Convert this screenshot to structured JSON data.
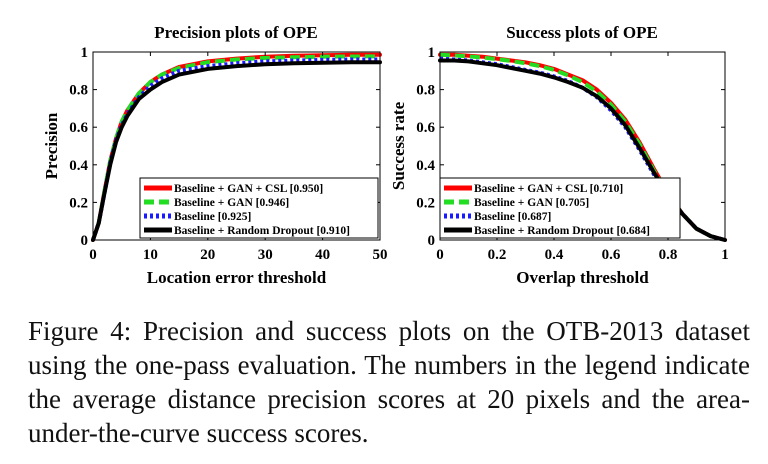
{
  "figure": {
    "caption": "Figure 4: Precision and success plots on the OTB-2013 dataset using the one-pass evaluation. The numbers in the legend indicate the average distance precision scores at 20 pixels and the area-under-the-curve success scores."
  },
  "chart_data": [
    {
      "type": "line",
      "title": "Precision plots of OPE",
      "xlabel": "Location error threshold",
      "ylabel": "Precision",
      "xlim": [
        0,
        50
      ],
      "ylim": [
        0,
        1
      ],
      "xticks": [
        0,
        10,
        20,
        30,
        40,
        50
      ],
      "yticks": [
        0,
        0.2,
        0.4,
        0.6,
        0.8,
        1
      ],
      "yticklabels": [
        "0",
        "0.2",
        "0.4",
        "0.6",
        "0.8",
        "1"
      ],
      "legend_position": "bottom-right",
      "x": [
        0,
        1,
        2,
        3,
        4,
        5,
        6,
        8,
        10,
        12,
        15,
        20,
        25,
        30,
        35,
        40,
        45,
        50
      ],
      "series": [
        {
          "name": "Baseline + GAN + CSL [0.950]",
          "color": "#ff0000",
          "dash": "solid",
          "values": [
            0.0,
            0.09,
            0.26,
            0.42,
            0.54,
            0.63,
            0.69,
            0.78,
            0.84,
            0.88,
            0.92,
            0.95,
            0.965,
            0.975,
            0.98,
            0.983,
            0.985,
            0.985
          ]
        },
        {
          "name": "Baseline + GAN [0.946]",
          "color": "#22dd22",
          "dash": "dashed",
          "values": [
            0.0,
            0.09,
            0.26,
            0.42,
            0.54,
            0.63,
            0.69,
            0.78,
            0.84,
            0.88,
            0.915,
            0.946,
            0.96,
            0.968,
            0.972,
            0.975,
            0.976,
            0.977
          ]
        },
        {
          "name": "Baseline [0.925]",
          "color": "#1a1aff",
          "dash": "dotted",
          "values": [
            0.0,
            0.09,
            0.25,
            0.41,
            0.53,
            0.61,
            0.67,
            0.76,
            0.82,
            0.86,
            0.9,
            0.925,
            0.94,
            0.95,
            0.955,
            0.958,
            0.96,
            0.96
          ]
        },
        {
          "name": "Baseline + Random Dropout [0.910]",
          "color": "#000000",
          "dash": "solid",
          "values": [
            0.0,
            0.09,
            0.25,
            0.4,
            0.52,
            0.6,
            0.66,
            0.75,
            0.8,
            0.84,
            0.88,
            0.91,
            0.925,
            0.935,
            0.94,
            0.943,
            0.945,
            0.946
          ]
        }
      ]
    },
    {
      "type": "line",
      "title": "Success plots of OPE",
      "xlabel": "Overlap threshold",
      "ylabel": "Success rate",
      "xlim": [
        0,
        1
      ],
      "ylim": [
        0,
        1
      ],
      "xticks": [
        0,
        0.2,
        0.4,
        0.6,
        0.8,
        1
      ],
      "xticklabels": [
        "0",
        "0.2",
        "0.4",
        "0.6",
        "0.8",
        "1"
      ],
      "yticks": [
        0,
        0.2,
        0.4,
        0.6,
        0.8,
        1
      ],
      "yticklabels": [
        "0",
        "0.2",
        "0.4",
        "0.6",
        "0.8",
        "1"
      ],
      "legend_position": "bottom-left",
      "x": [
        0,
        0.05,
        0.1,
        0.15,
        0.2,
        0.25,
        0.3,
        0.35,
        0.4,
        0.45,
        0.5,
        0.55,
        0.6,
        0.65,
        0.7,
        0.75,
        0.8,
        0.85,
        0.9,
        0.95,
        1.0
      ],
      "series": [
        {
          "name": "Baseline + GAN + CSL [0.710]",
          "color": "#ff0000",
          "dash": "solid",
          "values": [
            0.985,
            0.985,
            0.98,
            0.975,
            0.965,
            0.955,
            0.945,
            0.93,
            0.91,
            0.88,
            0.85,
            0.8,
            0.73,
            0.64,
            0.52,
            0.38,
            0.25,
            0.14,
            0.06,
            0.02,
            0.0
          ]
        },
        {
          "name": "Baseline + GAN [0.705]",
          "color": "#22dd22",
          "dash": "dashed",
          "values": [
            0.985,
            0.982,
            0.977,
            0.97,
            0.962,
            0.952,
            0.94,
            0.925,
            0.905,
            0.875,
            0.84,
            0.79,
            0.72,
            0.63,
            0.51,
            0.37,
            0.245,
            0.14,
            0.06,
            0.02,
            0.0
          ]
        },
        {
          "name": "Baseline [0.687]",
          "color": "#1a1aff",
          "dash": "dotted",
          "values": [
            0.965,
            0.96,
            0.955,
            0.945,
            0.935,
            0.92,
            0.905,
            0.89,
            0.87,
            0.845,
            0.81,
            0.76,
            0.69,
            0.6,
            0.48,
            0.35,
            0.24,
            0.14,
            0.06,
            0.02,
            0.0
          ]
        },
        {
          "name": "Baseline + Random Dropout [0.684]",
          "color": "#000000",
          "dash": "solid",
          "values": [
            0.955,
            0.955,
            0.95,
            0.94,
            0.93,
            0.915,
            0.9,
            0.885,
            0.865,
            0.84,
            0.81,
            0.765,
            0.7,
            0.61,
            0.49,
            0.36,
            0.24,
            0.14,
            0.06,
            0.02,
            0.0
          ]
        }
      ]
    }
  ]
}
